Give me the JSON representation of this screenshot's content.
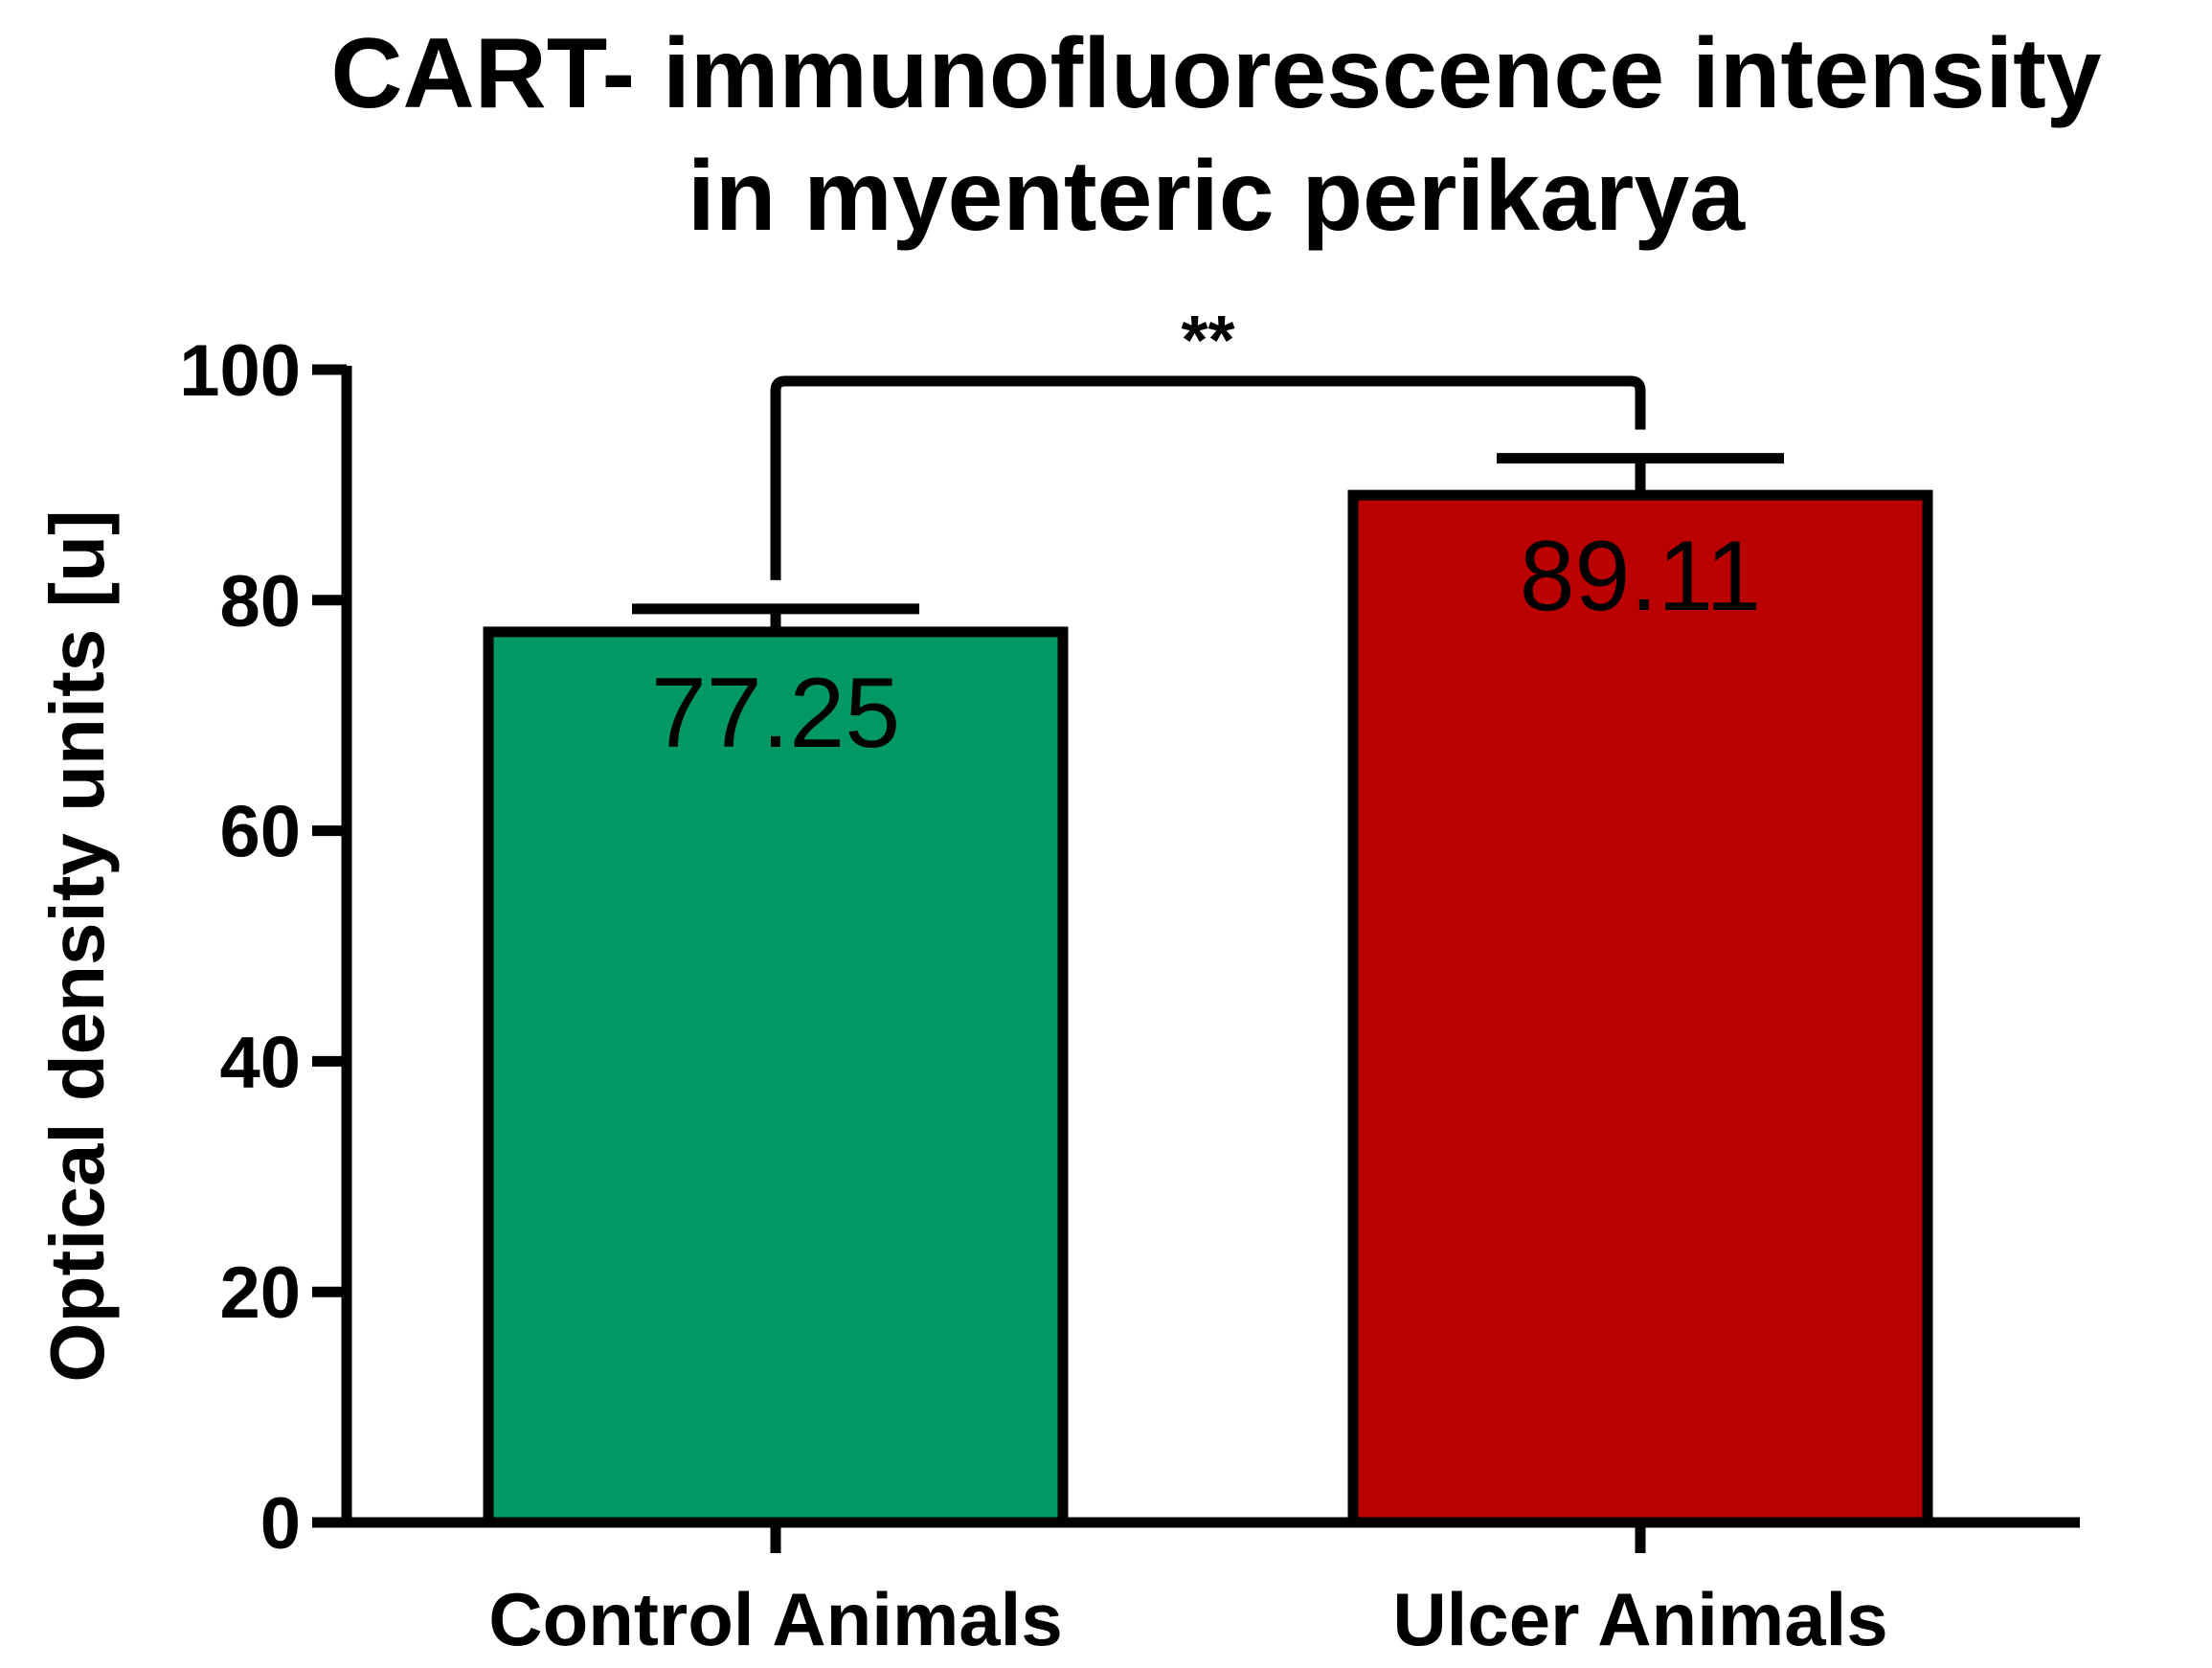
{
  "chart_data": {
    "type": "bar",
    "title": [
      "CART- immunofluorescence intensity",
      "in myenteric perikarya"
    ],
    "ylabel": "Optical density units [u]",
    "xlabel": "",
    "categories": [
      "Control Animals",
      "Ulcer Animals"
    ],
    "values": [
      77.25,
      89.11
    ],
    "error": [
      2.0,
      3.2
    ],
    "data_labels": [
      "77.25",
      "89.11"
    ],
    "colors": [
      "#009966",
      "#BB0000"
    ],
    "ylim": [
      0,
      100
    ],
    "yticks": [
      0,
      20,
      40,
      60,
      80,
      100
    ],
    "grid": false,
    "significance": {
      "between": [
        0,
        1
      ],
      "label": "**",
      "y": 99
    }
  }
}
